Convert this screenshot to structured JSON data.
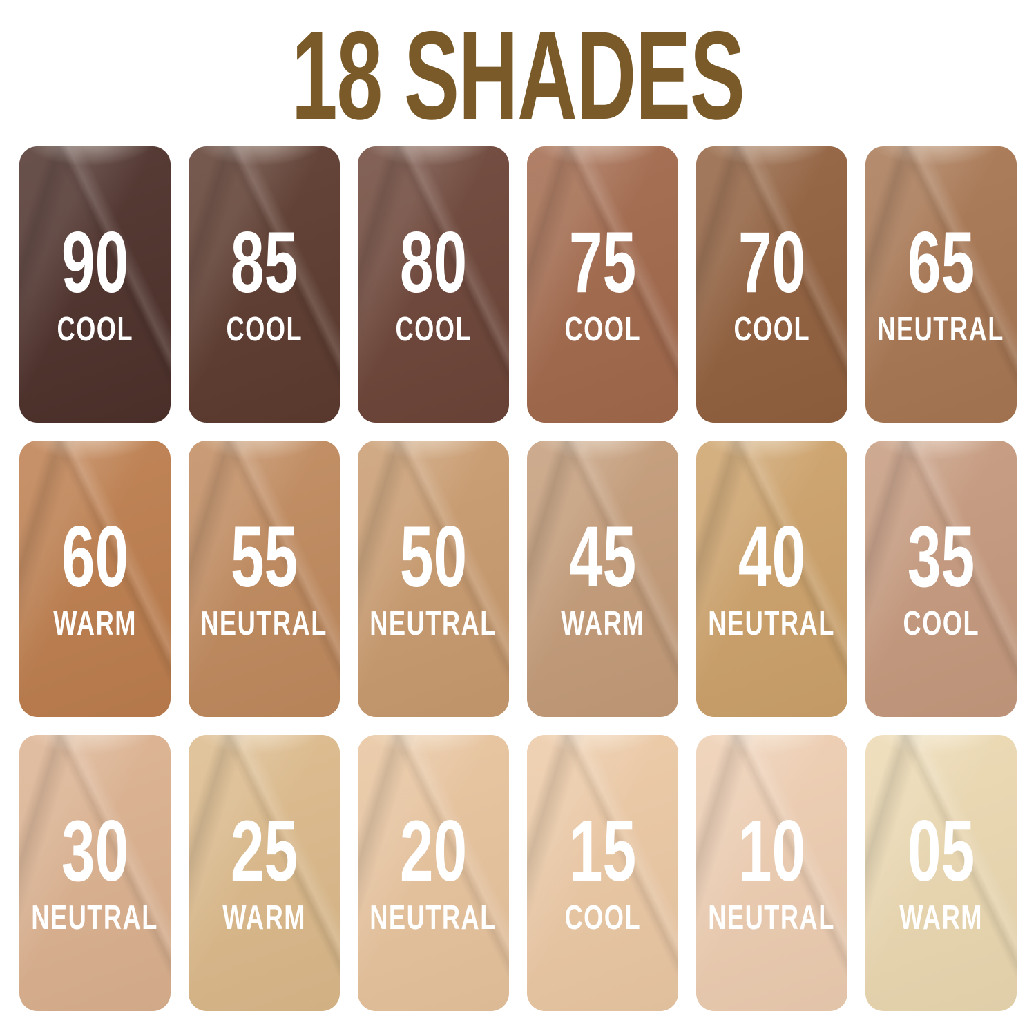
{
  "title": "18 SHADES",
  "title_color": "#7a5a28",
  "shades": [
    {
      "number": "90",
      "undertone": "COOL",
      "color": "#4e312b"
    },
    {
      "number": "85",
      "undertone": "COOL",
      "color": "#5d3b2f"
    },
    {
      "number": "80",
      "undertone": "COOL",
      "color": "#6d4538"
    },
    {
      "number": "75",
      "undertone": "COOL",
      "color": "#a2694c"
    },
    {
      "number": "70",
      "undertone": "COOL",
      "color": "#92613f"
    },
    {
      "number": "65",
      "undertone": "NEUTRAL",
      "color": "#a87753"
    },
    {
      "number": "60",
      "undertone": "WARM",
      "color": "#bd7e4e"
    },
    {
      "number": "55",
      "undertone": "NEUTRAL",
      "color": "#c08a5e"
    },
    {
      "number": "50",
      "undertone": "NEUTRAL",
      "color": "#c99b6f"
    },
    {
      "number": "45",
      "undertone": "WARM",
      "color": "#c49c79"
    },
    {
      "number": "40",
      "undertone": "NEUTRAL",
      "color": "#cda26b"
    },
    {
      "number": "35",
      "undertone": "COOL",
      "color": "#c69a7e"
    },
    {
      "number": "30",
      "undertone": "NEUTRAL",
      "color": "#dcb290"
    },
    {
      "number": "25",
      "undertone": "WARM",
      "color": "#dcba8b"
    },
    {
      "number": "20",
      "undertone": "NEUTRAL",
      "color": "#e8c49e"
    },
    {
      "number": "15",
      "undertone": "COOL",
      "color": "#ecc9a5"
    },
    {
      "number": "10",
      "undertone": "NEUTRAL",
      "color": "#eeceb2"
    },
    {
      "number": "05",
      "undertone": "WARM",
      "color": "#ecd9b2"
    }
  ],
  "chart_data": {
    "type": "table",
    "title": "18 SHADES",
    "layout": {
      "columns": 6,
      "rows": 3,
      "order": "row-major, darkest to lightest"
    },
    "columns": [
      "shade_number",
      "undertone",
      "swatch_color"
    ],
    "rows": [
      [
        "90",
        "COOL",
        "#4e312b"
      ],
      [
        "85",
        "COOL",
        "#5d3b2f"
      ],
      [
        "80",
        "COOL",
        "#6d4538"
      ],
      [
        "75",
        "COOL",
        "#a2694c"
      ],
      [
        "70",
        "COOL",
        "#92613f"
      ],
      [
        "65",
        "NEUTRAL",
        "#a87753"
      ],
      [
        "60",
        "WARM",
        "#bd7e4e"
      ],
      [
        "55",
        "NEUTRAL",
        "#c08a5e"
      ],
      [
        "50",
        "NEUTRAL",
        "#c99b6f"
      ],
      [
        "45",
        "WARM",
        "#c49c79"
      ],
      [
        "40",
        "NEUTRAL",
        "#cda26b"
      ],
      [
        "35",
        "COOL",
        "#c69a7e"
      ],
      [
        "30",
        "NEUTRAL",
        "#dcb290"
      ],
      [
        "25",
        "WARM",
        "#dcba8b"
      ],
      [
        "20",
        "NEUTRAL",
        "#e8c49e"
      ],
      [
        "15",
        "COOL",
        "#ecc9a5"
      ],
      [
        "10",
        "NEUTRAL",
        "#eeceb2"
      ],
      [
        "05",
        "WARM",
        "#ecd9b2"
      ]
    ]
  }
}
